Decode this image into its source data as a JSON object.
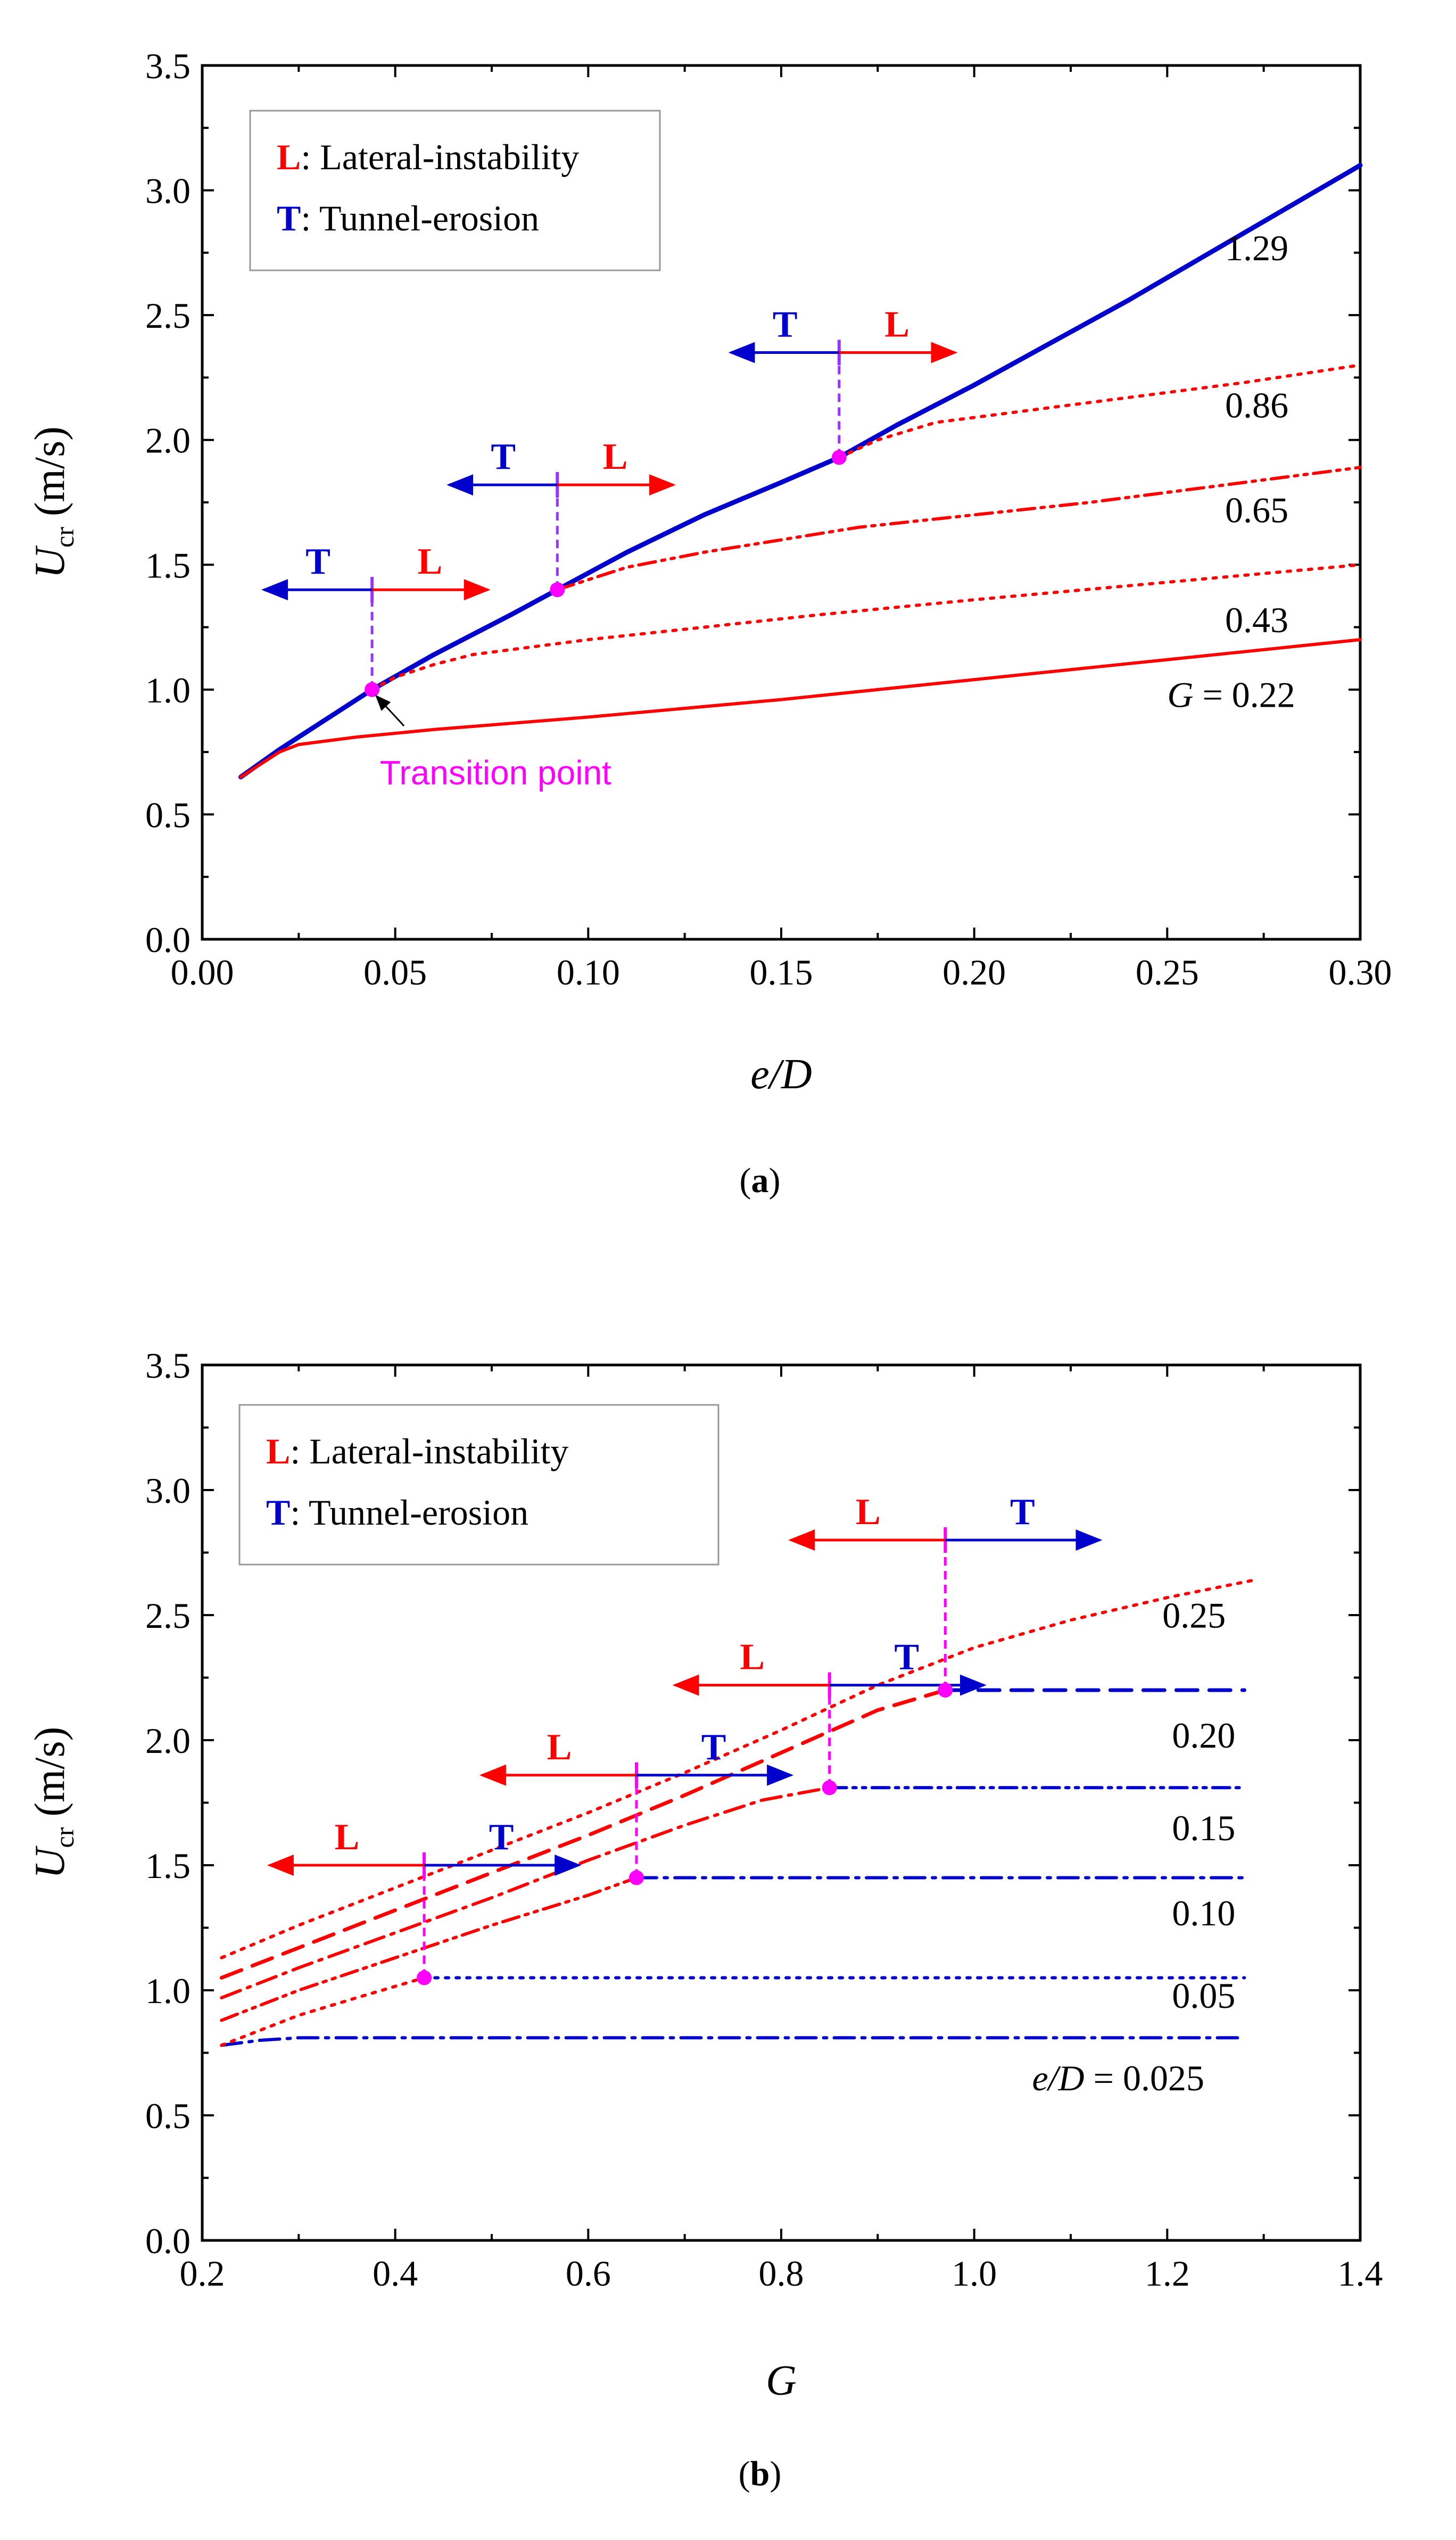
{
  "colors": {
    "red": "#ff0000",
    "blue": "#0000cc",
    "magenta": "#ff00ff",
    "purple": "#9933ff"
  },
  "chart_data": [
    {
      "id": "a",
      "type": "line",
      "caption_open": "(",
      "caption_letter": "a",
      "caption_close": ")",
      "xlabel": "e/D",
      "ylabel_main": "U",
      "ylabel_sub": "cr",
      "ylabel_unit": " (m/s)",
      "xlim": [
        0,
        0.3
      ],
      "ylim": [
        0,
        3.5
      ],
      "xticks": [
        0,
        0.05,
        0.1,
        0.15,
        0.2,
        0.25,
        0.3
      ],
      "xtick_labels": [
        "0.00",
        "0.05",
        "0.10",
        "0.15",
        "0.20",
        "0.25",
        "0.30"
      ],
      "yticks": [
        0,
        0.5,
        1.0,
        1.5,
        2.0,
        2.5,
        3.0,
        3.5
      ],
      "ytick_labels": [
        "0.0",
        "0.5",
        "1.0",
        "1.5",
        "2.0",
        "2.5",
        "3.0",
        "3.5"
      ],
      "legend": {
        "position": "top-left",
        "items": [
          {
            "key": "L",
            "sep": ":",
            "text": "Lateral-instability",
            "color": "#ff0000"
          },
          {
            "key": "T",
            "sep": ":",
            "text": "Tunnel-erosion",
            "color": "#0000cc"
          }
        ]
      },
      "series": [
        {
          "name": "1.29",
          "color": "#0000cc",
          "style": "solid",
          "width": 9,
          "x": [
            0.01,
            0.02,
            0.03,
            0.044,
            0.06,
            0.08,
            0.092,
            0.11,
            0.13,
            0.15,
            0.165,
            0.18,
            0.2,
            0.22,
            0.24,
            0.26,
            0.28,
            0.3
          ],
          "y": [
            0.65,
            0.76,
            0.86,
            1.0,
            1.14,
            1.3,
            1.4,
            1.55,
            1.7,
            1.83,
            1.93,
            2.06,
            2.22,
            2.39,
            2.56,
            2.74,
            2.92,
            3.1
          ]
        },
        {
          "name": "0.86",
          "color": "#ff0000",
          "style": "dot",
          "width": 6,
          "x": [
            0.165,
            0.175,
            0.19,
            0.21,
            0.23,
            0.25,
            0.27,
            0.3
          ],
          "y": [
            1.93,
            2.0,
            2.07,
            2.11,
            2.15,
            2.19,
            2.23,
            2.3
          ]
        },
        {
          "name": "0.65",
          "color": "#ff0000",
          "style": "dashdotdot",
          "width": 6,
          "x": [
            0.092,
            0.1,
            0.11,
            0.13,
            0.15,
            0.17,
            0.2,
            0.23,
            0.26,
            0.3
          ],
          "y": [
            1.4,
            1.44,
            1.49,
            1.55,
            1.6,
            1.65,
            1.7,
            1.75,
            1.81,
            1.89
          ]
        },
        {
          "name": "0.43",
          "color": "#ff0000",
          "style": "dot",
          "width": 6,
          "x": [
            0.044,
            0.05,
            0.06,
            0.07,
            0.085,
            0.1,
            0.13,
            0.16,
            0.2,
            0.25,
            0.3
          ],
          "y": [
            1.0,
            1.05,
            1.1,
            1.14,
            1.17,
            1.2,
            1.25,
            1.3,
            1.36,
            1.43,
            1.5
          ]
        },
        {
          "name": "G = 0.22",
          "color": "#ff0000",
          "style": "solid",
          "width": 6,
          "x": [
            0.01,
            0.015,
            0.02,
            0.025,
            0.03,
            0.04,
            0.06,
            0.1,
            0.15,
            0.2,
            0.25,
            0.3
          ],
          "y": [
            0.65,
            0.7,
            0.75,
            0.78,
            0.79,
            0.81,
            0.84,
            0.89,
            0.96,
            1.04,
            1.12,
            1.2
          ]
        }
      ],
      "series_labels": [
        {
          "text": "1.29",
          "x": 0.265,
          "y": 2.72
        },
        {
          "text": "0.86",
          "x": 0.265,
          "y": 2.09
        },
        {
          "text": "0.65",
          "x": 0.265,
          "y": 1.67
        },
        {
          "text": "0.43",
          "x": 0.265,
          "y": 1.23
        },
        {
          "text_italic": "G",
          "text": " = 0.22",
          "x": 0.25,
          "y": 0.93
        }
      ],
      "transition_points": [
        {
          "x": 0.044,
          "y": 1.0,
          "arrow_y": 1.4,
          "left_letter": "T",
          "right_letter": "L",
          "left_span": 0.028,
          "right_span": 0.03
        },
        {
          "x": 0.092,
          "y": 1.4,
          "arrow_y": 1.82,
          "left_letter": "T",
          "right_letter": "L",
          "left_span": 0.028,
          "right_span": 0.03
        },
        {
          "x": 0.165,
          "y": 1.93,
          "arrow_y": 2.35,
          "left_letter": "T",
          "right_letter": "L",
          "left_span": 0.028,
          "right_span": 0.03
        }
      ],
      "annotation": {
        "text": "Transition point",
        "point_x": 0.044,
        "point_y": 1.0,
        "text_x": 0.046,
        "text_y": 0.62
      }
    },
    {
      "id": "b",
      "type": "line",
      "caption_open": "(",
      "caption_letter": "b",
      "caption_close": ")",
      "xlabel": "G",
      "ylabel_main": "U",
      "ylabel_sub": "cr",
      "ylabel_unit": " (m/s)",
      "xlim": [
        0.2,
        1.4
      ],
      "ylim": [
        0,
        3.5
      ],
      "xticks": [
        0.2,
        0.4,
        0.6,
        0.8,
        1.0,
        1.2,
        1.4
      ],
      "xtick_labels": [
        "0.2",
        "0.4",
        "0.6",
        "0.8",
        "1.0",
        "1.2",
        "1.4"
      ],
      "yticks": [
        0,
        0.5,
        1.0,
        1.5,
        2.0,
        2.5,
        3.0,
        3.5
      ],
      "ytick_labels": [
        "0.0",
        "0.5",
        "1.0",
        "1.5",
        "2.0",
        "2.5",
        "3.0",
        "3.5"
      ],
      "legend": {
        "position": "top-left",
        "items": [
          {
            "key": "L",
            "sep": ":",
            "text": "Lateral-instability",
            "color": "#ff0000"
          },
          {
            "key": "T",
            "sep": ":",
            "text": "Tunnel-erosion",
            "color": "#0000cc"
          }
        ]
      },
      "series": [
        {
          "name": "e/D = 0.025",
          "color": "#0000cc",
          "style": "dashdot",
          "width": 6,
          "x": [
            0.22,
            0.26,
            0.3,
            0.4,
            0.6,
            0.8,
            1.0,
            1.28
          ],
          "y": [
            0.78,
            0.8,
            0.81,
            0.81,
            0.81,
            0.81,
            0.81,
            0.81
          ]
        },
        {
          "name": "0.05 lateral",
          "color": "#ff0000",
          "style": "dot",
          "width": 6,
          "x": [
            0.22,
            0.3,
            0.36,
            0.43
          ],
          "y": [
            0.78,
            0.9,
            0.97,
            1.05
          ]
        },
        {
          "name": "0.05 tunnel",
          "color": "#0000cc",
          "style": "dot",
          "width": 6,
          "x": [
            0.43,
            1.28
          ],
          "y": [
            1.05,
            1.05
          ]
        },
        {
          "name": "0.10 lateral",
          "color": "#ff0000",
          "style": "dashdotdot",
          "width": 6,
          "x": [
            0.22,
            0.3,
            0.4,
            0.5,
            0.6,
            0.65
          ],
          "y": [
            0.88,
            1.0,
            1.13,
            1.26,
            1.38,
            1.45
          ]
        },
        {
          "name": "0.10 tunnel",
          "color": "#0000cc",
          "style": "dashdot",
          "width": 6,
          "x": [
            0.65,
            1.28
          ],
          "y": [
            1.45,
            1.45
          ]
        },
        {
          "name": "0.15 lateral",
          "color": "#ff0000",
          "style": "dashdot",
          "width": 6,
          "x": [
            0.22,
            0.3,
            0.4,
            0.5,
            0.6,
            0.7,
            0.78,
            0.85
          ],
          "y": [
            0.97,
            1.09,
            1.23,
            1.37,
            1.52,
            1.66,
            1.76,
            1.81
          ]
        },
        {
          "name": "0.15 tunnel",
          "color": "#0000cc",
          "style": "dashdotdot",
          "width": 6,
          "x": [
            0.85,
            1.28
          ],
          "y": [
            1.81,
            1.81
          ]
        },
        {
          "name": "0.20 lateral",
          "color": "#ff0000",
          "style": "dash",
          "width": 7,
          "x": [
            0.22,
            0.3,
            0.4,
            0.5,
            0.6,
            0.7,
            0.8,
            0.9,
            0.97
          ],
          "y": [
            1.05,
            1.17,
            1.32,
            1.47,
            1.62,
            1.78,
            1.95,
            2.12,
            2.2
          ]
        },
        {
          "name": "0.20 tunnel",
          "color": "#0000cc",
          "style": "dash",
          "width": 7,
          "x": [
            0.97,
            1.28
          ],
          "y": [
            2.2,
            2.2
          ]
        },
        {
          "name": "0.25",
          "color": "#ff0000",
          "style": "dot",
          "width": 6,
          "x": [
            0.22,
            0.3,
            0.4,
            0.5,
            0.6,
            0.7,
            0.8,
            0.9,
            1.0,
            1.1,
            1.2,
            1.29
          ],
          "y": [
            1.13,
            1.26,
            1.41,
            1.56,
            1.71,
            1.87,
            2.04,
            2.22,
            2.37,
            2.48,
            2.57,
            2.64
          ]
        }
      ],
      "series_labels": [
        {
          "text": "0.25",
          "x": 1.195,
          "y": 2.45
        },
        {
          "text": "0.20",
          "x": 1.205,
          "y": 1.97
        },
        {
          "text": "0.15",
          "x": 1.205,
          "y": 1.6
        },
        {
          "text": "0.10",
          "x": 1.205,
          "y": 1.26
        },
        {
          "text": "0.05",
          "x": 1.205,
          "y": 0.93
        },
        {
          "text_italic": "e/D",
          "text": " = 0.025",
          "x": 1.06,
          "y": 0.6
        }
      ],
      "transition_points": [
        {
          "x": 0.43,
          "y": 1.05,
          "arrow_y": 1.5,
          "left_letter": "L",
          "right_letter": "T",
          "left_span": 0.16,
          "right_span": 0.16
        },
        {
          "x": 0.65,
          "y": 1.45,
          "arrow_y": 1.86,
          "left_letter": "L",
          "right_letter": "T",
          "left_span": 0.16,
          "right_span": 0.16
        },
        {
          "x": 0.85,
          "y": 1.81,
          "arrow_y": 2.22,
          "left_letter": "L",
          "right_letter": "T",
          "left_span": 0.16,
          "right_span": 0.16
        },
        {
          "x": 0.97,
          "y": 2.2,
          "arrow_y": 2.8,
          "left_letter": "L",
          "right_letter": "T",
          "left_span": 0.16,
          "right_span": 0.16
        }
      ]
    }
  ]
}
